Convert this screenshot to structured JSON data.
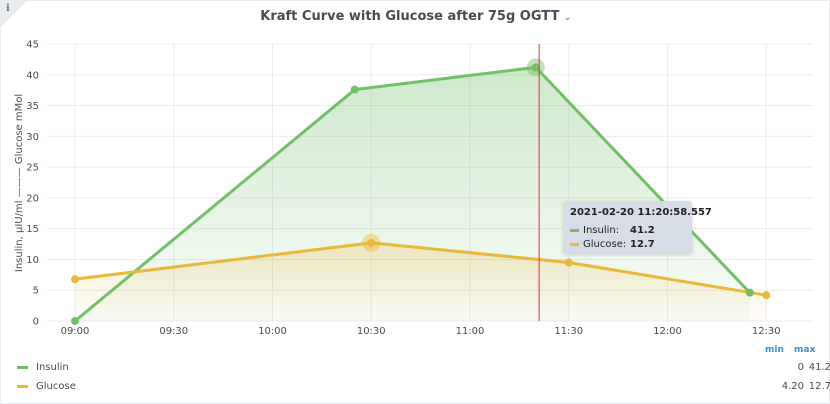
{
  "panel": {
    "title": "Kraft Curve with Glucose after 75g OGTT",
    "info_icon": "ℹ",
    "chevron_icon": "⌄"
  },
  "chart_data": {
    "type": "line",
    "title": "Kraft Curve with Glucose after 75g OGTT",
    "ylabel": "Insulin, µIU/ml ——— Glucose mMol",
    "xlabel": "",
    "ylim": [
      0,
      45
    ],
    "yticks": [
      0,
      5,
      10,
      15,
      20,
      25,
      30,
      35,
      40,
      45
    ],
    "xlim": [
      "09:00",
      "12:45"
    ],
    "xticks": [
      "09:00",
      "09:30",
      "10:00",
      "10:30",
      "11:00",
      "11:30",
      "12:00",
      "12:30"
    ],
    "grid": true,
    "legend_placement": "bottom",
    "series": [
      {
        "name": "Insulin",
        "color": "#73bf69",
        "fill": true,
        "points": [
          {
            "x": "09:00",
            "y": 0
          },
          {
            "x": "10:25",
            "y": 37.6
          },
          {
            "x": "11:20",
            "y": 41.2
          },
          {
            "x": "12:25",
            "y": 4.6
          }
        ]
      },
      {
        "name": "Glucose",
        "color": "#eab839",
        "fill": true,
        "points": [
          {
            "x": "09:00",
            "y": 6.8
          },
          {
            "x": "10:30",
            "y": 12.7
          },
          {
            "x": "11:30",
            "y": 9.5
          },
          {
            "x": "12:30",
            "y": 4.2
          }
        ]
      }
    ],
    "cursor": {
      "x": "11:21",
      "color": "#e02f44"
    }
  },
  "tooltip": {
    "time": "2021-02-20 11:20:58.557",
    "rows": [
      {
        "name": "Insulin:",
        "value": "41.2",
        "color": "#73bf69"
      },
      {
        "name": "Glucose:",
        "value": "12.7",
        "color": "#eab839"
      }
    ]
  },
  "legend": {
    "min_label": "min",
    "max_label": "max",
    "rows": [
      {
        "name": "Insulin",
        "min": "0",
        "max": "41.2",
        "color": "#73bf69"
      },
      {
        "name": "Glucose",
        "min": "4.20",
        "max": "12.7",
        "color": "#eab839"
      }
    ]
  }
}
